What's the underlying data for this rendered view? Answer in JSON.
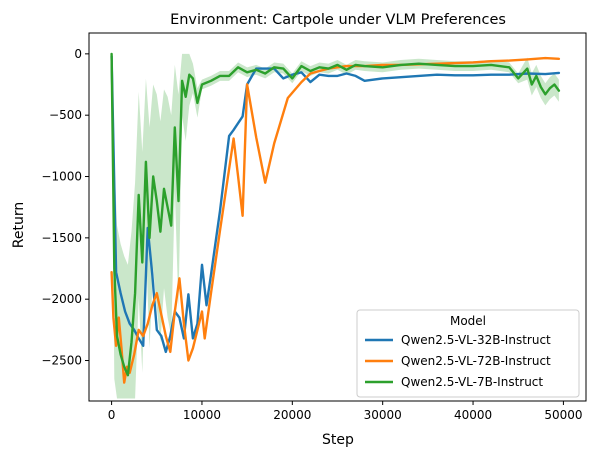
{
  "chart_data": {
    "type": "line",
    "title": "Environment: Cartpole under VLM Preferences",
    "xlabel": "Step",
    "ylabel": "Return",
    "xlim": [
      -2500,
      52500
    ],
    "ylim": [
      -2830,
      170
    ],
    "xticks": [
      0,
      10000,
      20000,
      30000,
      40000,
      50000
    ],
    "yticks": [
      0,
      -500,
      -1000,
      -1500,
      -2000,
      -2500
    ],
    "grid": false,
    "legend": {
      "title": "Model",
      "placement": "lower-right"
    },
    "series": [
      {
        "name": "Qwen2.5-VL-32B-Instruct",
        "color": "#1f77b4",
        "x": [
          0,
          500,
          1000,
          1500,
          2000,
          2500,
          3000,
          3500,
          4000,
          4500,
          5000,
          5500,
          6000,
          6500,
          7000,
          7500,
          8000,
          8500,
          9000,
          9500,
          10000,
          10500,
          11000,
          12000,
          13000,
          13500,
          14500,
          15000,
          16000,
          18000,
          19000,
          20000,
          21000,
          22000,
          23000,
          24000,
          25000,
          26000,
          27000,
          28000,
          30000,
          32000,
          34000,
          36000,
          38000,
          40000,
          42000,
          44000,
          46000,
          48000,
          49500
        ],
        "y": [
          -20,
          -1780,
          -1950,
          -2100,
          -2200,
          -2250,
          -2320,
          -2380,
          -1420,
          -1800,
          -2250,
          -2300,
          -2430,
          -2300,
          -2100,
          -2150,
          -2320,
          -1960,
          -2320,
          -2200,
          -1720,
          -2050,
          -1800,
          -1280,
          -670,
          -620,
          -510,
          -250,
          -120,
          -120,
          -200,
          -170,
          -150,
          -230,
          -170,
          -180,
          -180,
          -160,
          -180,
          -220,
          -200,
          -190,
          -180,
          -170,
          -175,
          -175,
          -170,
          -170,
          -160,
          -165,
          -155
        ]
      },
      {
        "name": "Qwen2.5-VL-72B-Instruct",
        "color": "#ff7f0e",
        "x": [
          0,
          200,
          500,
          800,
          1100,
          1400,
          1700,
          2000,
          2500,
          3000,
          3500,
          4000,
          4500,
          5000,
          6000,
          6500,
          7000,
          7500,
          8000,
          8500,
          9000,
          10000,
          10300,
          11000,
          12000,
          13500,
          14000,
          14500,
          15000,
          16000,
          17000,
          18000,
          19500,
          21000,
          22000,
          23000,
          24000,
          25000,
          26000,
          28000,
          30000,
          32000,
          34000,
          36000,
          38000,
          40000,
          42000,
          44000,
          46000,
          48000,
          49500
        ],
        "y": [
          -1780,
          -2150,
          -2380,
          -2150,
          -2400,
          -2680,
          -2550,
          -2600,
          -2450,
          -2250,
          -2300,
          -2200,
          -2050,
          -1950,
          -2300,
          -2430,
          -2100,
          -1830,
          -2200,
          -2500,
          -2400,
          -2100,
          -2320,
          -1950,
          -1440,
          -690,
          -1000,
          -1320,
          -250,
          -680,
          -1050,
          -730,
          -360,
          -230,
          -160,
          -140,
          -120,
          -110,
          -100,
          -100,
          -90,
          -90,
          -85,
          -80,
          -75,
          -70,
          -60,
          -55,
          -45,
          -35,
          -40
        ]
      },
      {
        "name": "Qwen2.5-VL-7B-Instruct",
        "color": "#2ca02c",
        "x": [
          0,
          300,
          600,
          1000,
          1400,
          1800,
          2200,
          2600,
          3000,
          3400,
          3800,
          4200,
          4600,
          5000,
          5400,
          5800,
          6200,
          6600,
          7000,
          7400,
          7800,
          8200,
          8600,
          9000,
          9500,
          10000,
          11000,
          12000,
          13000,
          14000,
          15000,
          16000,
          17000,
          18000,
          19000,
          20000,
          21000,
          22000,
          23000,
          24000,
          25000,
          26000,
          27000,
          28000,
          30000,
          32000,
          34000,
          36000,
          38000,
          40000,
          42000,
          44000,
          45000,
          46000,
          46500,
          47000,
          47500,
          48000,
          48500,
          49000,
          49500
        ],
        "y": [
          0,
          -1750,
          -2300,
          -2450,
          -2550,
          -2620,
          -2350,
          -1950,
          -1150,
          -1700,
          -880,
          -1500,
          -1000,
          -1200,
          -1450,
          -1100,
          -1250,
          -1400,
          -600,
          -1200,
          -220,
          -350,
          -170,
          -200,
          -400,
          -250,
          -220,
          -180,
          -180,
          -110,
          -150,
          -130,
          -160,
          -110,
          -120,
          -200,
          -100,
          -140,
          -110,
          -120,
          -90,
          -130,
          -90,
          -100,
          -110,
          -90,
          -80,
          -90,
          -100,
          -100,
          -90,
          -110,
          -200,
          -120,
          -250,
          -180,
          -270,
          -330,
          -280,
          -250,
          -300
        ]
      }
    ]
  }
}
